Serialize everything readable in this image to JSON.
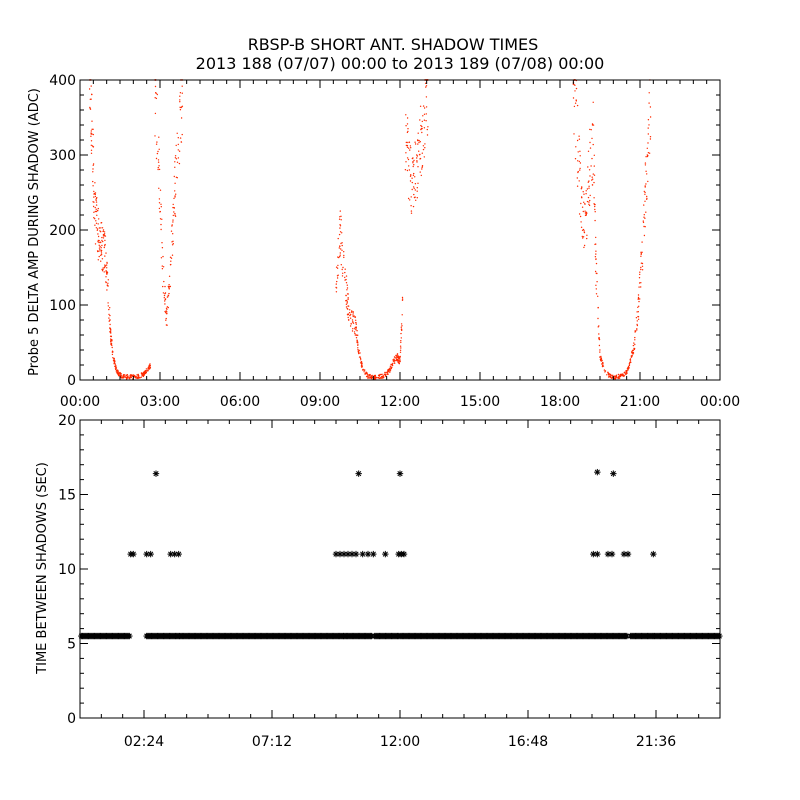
{
  "figure": {
    "title_line1": "RBSP-B SHORT ANT. SHADOW TIMES",
    "title_line2": "2013 188 (07/07) 00:00 to 2013 189 (07/08) 00:00"
  },
  "colors": {
    "points": "#ff2a00",
    "stars": "#000000",
    "axes": "#000000"
  },
  "chart_data": [
    {
      "type": "scatter",
      "ylabel": "Probe 5 DELTA AMP DURING SHADOW (ADC)",
      "xlim": [
        0,
        24
      ],
      "ylim": [
        0,
        400
      ],
      "x_tick_labels": [
        "00:00",
        "03:00",
        "06:00",
        "09:00",
        "12:00",
        "15:00",
        "18:00",
        "21:00",
        "00:00"
      ],
      "y_tick_labels": [
        "0",
        "100",
        "200",
        "300",
        "400"
      ],
      "series": [
        {
          "color": "#ff2a00",
          "segments": [
            {
              "x": [
                0.35,
                0.45,
                0.55,
                0.65,
                0.75,
                0.85,
                0.95,
                1.05,
                1.15,
                1.25,
                1.35,
                1.45,
                1.6,
                1.8,
                2.0,
                2.2,
                2.4,
                2.55,
                2.65
              ],
              "y": [
                400,
                330,
                230,
                200,
                185,
                175,
                165,
                120,
                60,
                30,
                15,
                8,
                5,
                4,
                4,
                5,
                8,
                15,
                20
              ]
            },
            {
              "x": [
                2.8,
                2.95,
                3.1,
                3.25,
                3.4,
                3.55,
                3.7,
                3.85
              ],
              "y": [
                400,
                300,
                150,
                80,
                150,
                250,
                320,
                400
              ]
            },
            {
              "x": [
                9.6,
                9.75,
                9.9,
                10.05,
                10.2,
                10.35,
                10.45,
                10.6,
                10.8,
                11.0,
                11.2,
                11.4,
                11.6,
                11.75,
                11.9,
                12.0,
                12.1
              ],
              "y": [
                120,
                200,
                150,
                100,
                80,
                70,
                40,
                15,
                5,
                4,
                4,
                6,
                12,
                25,
                30,
                25,
                100
              ]
            },
            {
              "x": [
                12.2,
                12.35,
                12.5,
                12.65,
                12.8,
                12.95,
                13.05
              ],
              "y": [
                330,
                280,
                260,
                280,
                320,
                370,
                400
              ]
            },
            {
              "x": [
                18.5,
                18.65,
                18.8,
                18.95,
                19.1,
                19.25,
                19.35,
                19.5,
                19.7,
                19.9,
                20.1,
                20.3,
                20.5,
                20.65,
                20.8,
                20.95,
                21.1,
                21.25,
                21.4
              ],
              "y": [
                400,
                320,
                230,
                200,
                280,
                320,
                150,
                30,
                10,
                5,
                4,
                5,
                10,
                25,
                50,
                100,
                180,
                280,
                400
              ]
            }
          ]
        }
      ]
    },
    {
      "type": "scatter",
      "ylabel": "TIME BETWEEN SHADOWS (SEC)",
      "xlim": [
        0,
        24
      ],
      "ylim": [
        0,
        20
      ],
      "x_tick_labels": [
        "02:24",
        "07:12",
        "12:00",
        "16:48",
        "21:36"
      ],
      "y_tick_labels": [
        "0",
        "5",
        "10",
        "15",
        "20"
      ],
      "series": [
        {
          "marker": "asterisk",
          "color": "#000000",
          "x": [
            1.9,
            2.0,
            2.5,
            2.65,
            3.4,
            3.55,
            3.7,
            2.85,
            9.6,
            9.75,
            9.9,
            10.05,
            10.2,
            10.35,
            10.6,
            10.8,
            11.0,
            11.45,
            11.95,
            12.05,
            12.15,
            19.25,
            19.4,
            19.8,
            19.95,
            20.4,
            20.55,
            21.5,
            10.45,
            12.0,
            19.4,
            20.0
          ],
          "y": [
            11,
            11,
            11,
            11,
            11,
            11,
            11,
            16.4,
            11,
            11,
            11,
            11,
            11,
            11,
            11,
            11,
            11,
            11,
            11,
            11,
            11,
            11,
            11,
            11,
            11,
            11,
            11,
            11,
            16.4,
            16.4,
            16.5,
            16.4
          ]
        },
        {
          "marker": "asterisk-band",
          "color": "#000000",
          "baseline": 5.5,
          "x_ranges": [
            [
              0.05,
              1.85
            ],
            [
              2.5,
              3.75
            ],
            [
              3.75,
              9.9
            ],
            [
              9.9,
              10.95
            ],
            [
              11.05,
              11.95
            ],
            [
              12.0,
              19.2
            ],
            [
              19.2,
              20.55
            ],
            [
              20.65,
              21.5
            ],
            [
              21.5,
              24.0
            ]
          ]
        }
      ]
    }
  ]
}
